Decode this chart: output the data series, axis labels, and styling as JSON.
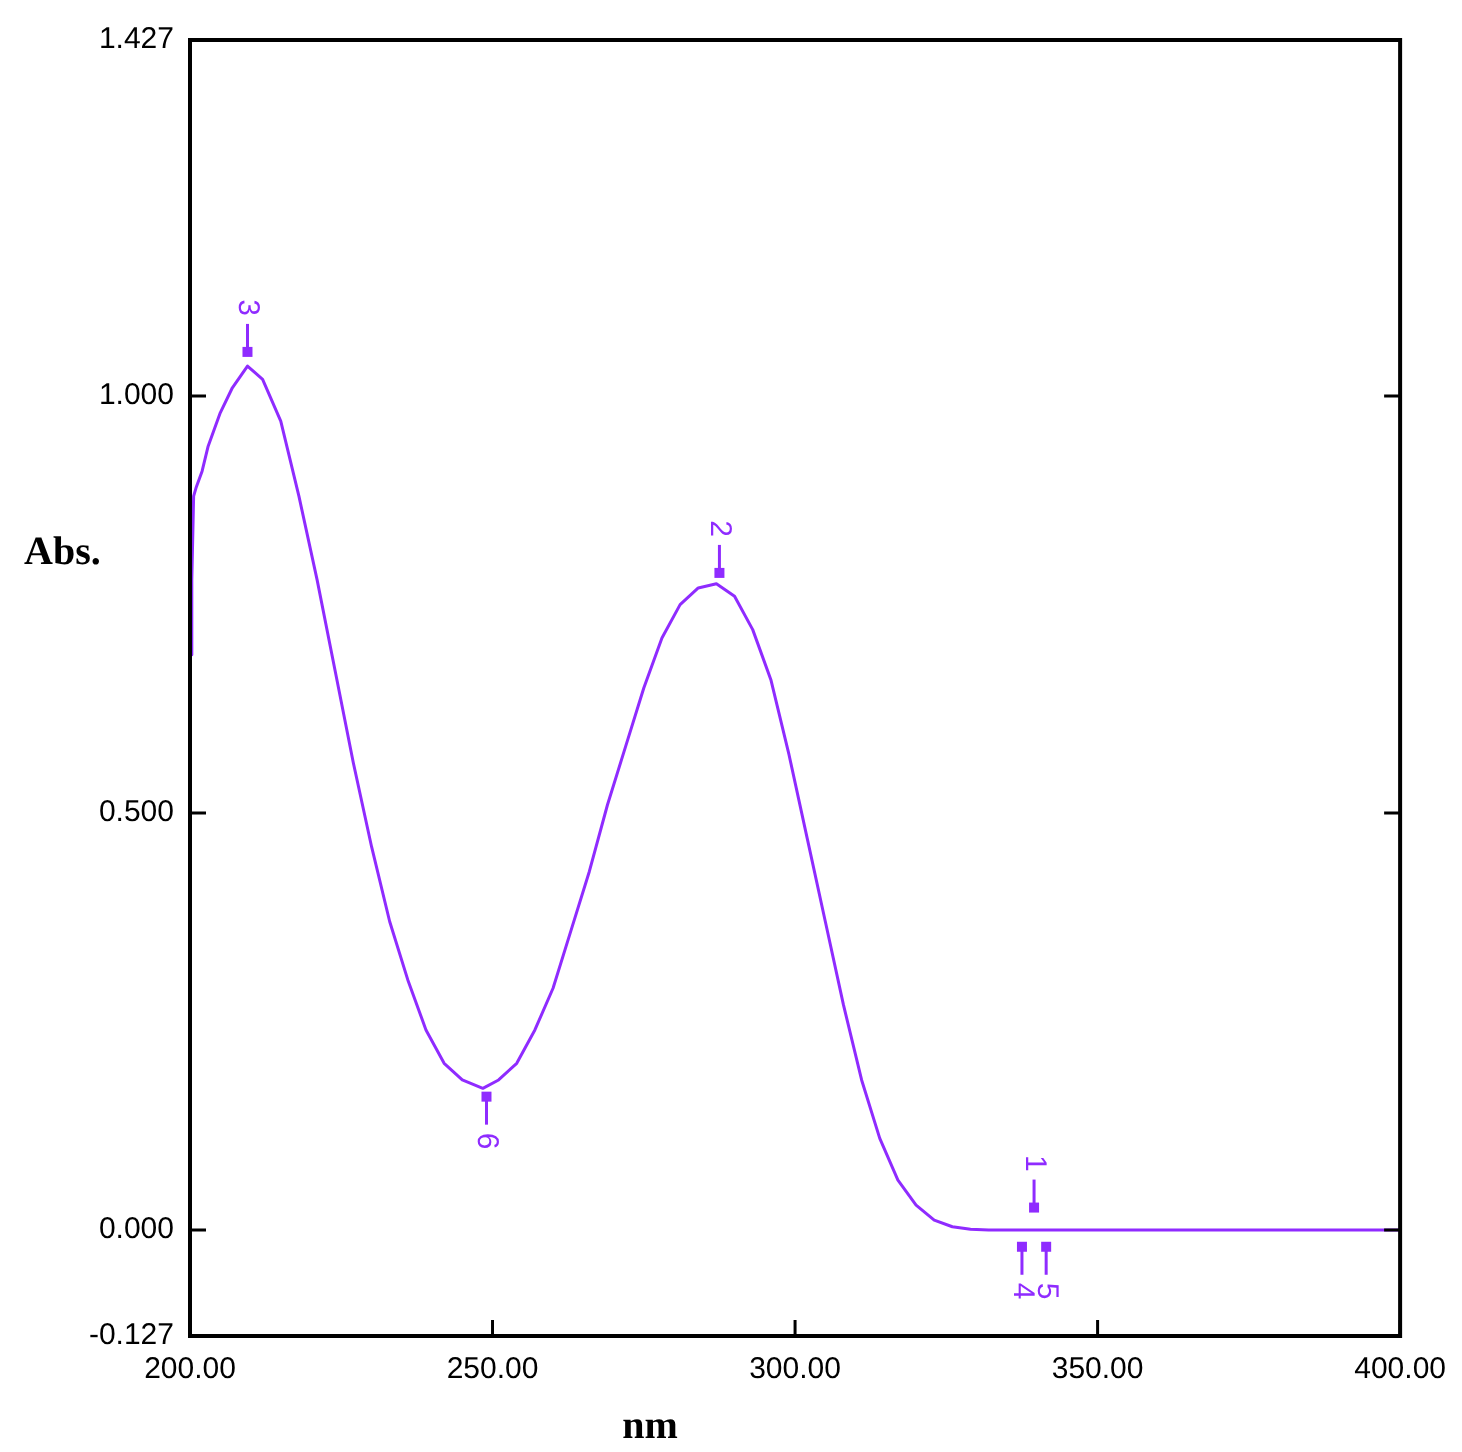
{
  "chart_data": {
    "type": "line",
    "xlabel": "nm",
    "ylabel": "Abs.",
    "xlim": [
      200,
      400
    ],
    "ylim": [
      -0.127,
      1.427
    ],
    "xticks": [
      {
        "value": 200,
        "label": "200.00"
      },
      {
        "value": 250,
        "label": "250.00"
      },
      {
        "value": 300,
        "label": "300.00"
      },
      {
        "value": 350,
        "label": "350.00"
      },
      {
        "value": 400,
        "label": "400.00"
      }
    ],
    "yticks": [
      {
        "value": -0.127,
        "label": "-0.127"
      },
      {
        "value": 0,
        "label": "0.000"
      },
      {
        "value": 0.5,
        "label": "0.500"
      },
      {
        "value": 1,
        "label": "1.000"
      },
      {
        "value": 1.427,
        "label": "1.427"
      }
    ],
    "grid": false,
    "legend": false,
    "marker": "none",
    "line_style": "solid",
    "series": [
      {
        "color": "#8f2bff",
        "x": [
          200,
          200.3,
          200.6,
          201,
          202,
          203,
          205,
          207,
          209.5,
          212,
          215,
          218,
          221,
          224,
          227,
          230,
          233,
          236,
          239,
          242,
          245,
          248.4,
          251,
          254,
          257,
          260,
          263,
          266,
          269,
          272,
          275,
          278,
          281,
          284,
          287,
          290,
          293,
          296,
          299,
          302,
          305,
          308,
          311,
          314,
          317,
          320,
          323,
          326,
          329,
          332,
          340,
          360,
          380,
          400
        ],
        "values": [
          0.69,
          0.78,
          0.88,
          0.89,
          0.91,
          0.94,
          0.98,
          1.01,
          1.036,
          1.02,
          0.97,
          0.88,
          0.78,
          0.67,
          0.56,
          0.46,
          0.37,
          0.3,
          0.24,
          0.2,
          0.18,
          0.17,
          0.18,
          0.2,
          0.24,
          0.29,
          0.36,
          0.43,
          0.51,
          0.58,
          0.65,
          0.71,
          0.75,
          0.77,
          0.775,
          0.76,
          0.72,
          0.66,
          0.57,
          0.47,
          0.37,
          0.27,
          0.18,
          0.11,
          0.06,
          0.03,
          0.012,
          0.004,
          0.001,
          0,
          0,
          0,
          0,
          0
        ]
      }
    ],
    "annotations": [
      {
        "text": "3",
        "x": 209.5,
        "y": 1.053
      },
      {
        "text": "2",
        "x": 287.5,
        "y": 0.788
      },
      {
        "text": "6",
        "x": 249,
        "y": 0.16
      },
      {
        "text": "1",
        "x": 339.5,
        "y": 0.027
      },
      {
        "text": "4",
        "x": 337.5,
        "y": -0.02
      },
      {
        "text": "5",
        "x": 341.5,
        "y": -0.02
      }
    ]
  }
}
